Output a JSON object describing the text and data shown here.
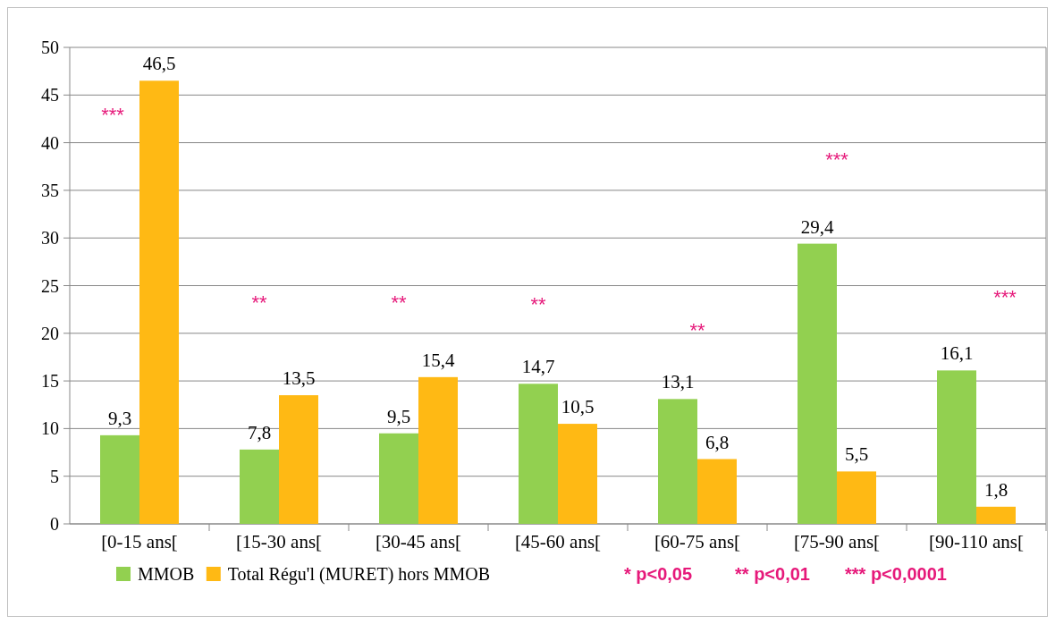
{
  "chart_data": {
    "type": "bar",
    "categories": [
      "[0-15 ans[",
      "[15-30 ans[",
      "[30-45 ans[",
      "[45-60 ans[",
      "[60-75 ans[",
      "[75-90 ans[",
      "[90-110 ans["
    ],
    "series": [
      {
        "name": "MMOB",
        "color": "#92d050",
        "values": [
          9.3,
          7.8,
          9.5,
          14.7,
          13.1,
          29.4,
          16.1
        ],
        "value_labels": [
          "9,3",
          "7,8",
          "9,5",
          "14,7",
          "13,1",
          "29,4",
          "16,1"
        ]
      },
      {
        "name": "Total Régu'l (MURET) hors MMOB",
        "color": "#ffb914",
        "values": [
          46.5,
          13.5,
          15.4,
          10.5,
          6.8,
          5.5,
          1.8
        ],
        "value_labels": [
          "46,5",
          "13,5",
          "15,4",
          "10,5",
          "6,8",
          "5,5",
          "1,8"
        ]
      }
    ],
    "ylim": [
      0,
      50
    ],
    "yticks": [
      0,
      5,
      10,
      15,
      20,
      25,
      30,
      35,
      40,
      45,
      50
    ],
    "grid": "y",
    "legend": "bottom",
    "annotations": [
      "***",
      "**",
      "**",
      "**",
      "**",
      "***",
      "***",
      "* p<0,05",
      "** p<0,01",
      "*** p<0,0001"
    ]
  }
}
